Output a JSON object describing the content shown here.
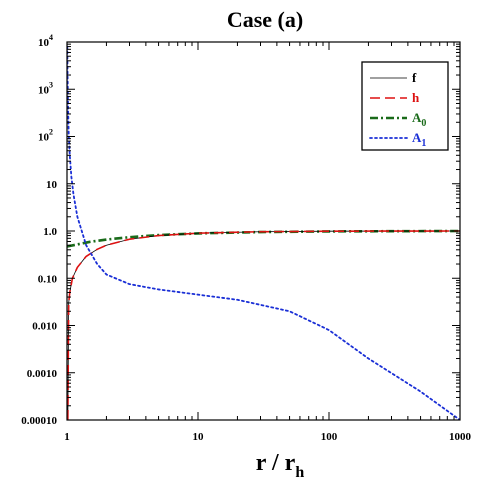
{
  "chart_data": {
    "type": "line",
    "title": "Case (a)",
    "xlabel": {
      "main": "r / r",
      "sub": "h"
    },
    "ylabel": "",
    "xscale": "log",
    "yscale": "log",
    "xlim": [
      1,
      1000
    ],
    "ylim": [
      0.0001,
      10000
    ],
    "x_ticks": [
      {
        "value": 1,
        "label": "1"
      },
      {
        "value": 10,
        "label": "10"
      },
      {
        "value": 100,
        "label": "100"
      },
      {
        "value": 1000,
        "label": "1000"
      }
    ],
    "y_ticks": [
      {
        "value": 0.0001,
        "label": "0.00010"
      },
      {
        "value": 0.001,
        "label": "0.0010"
      },
      {
        "value": 0.01,
        "label": "0.010"
      },
      {
        "value": 0.1,
        "label": "0.10"
      },
      {
        "value": 1,
        "label": "1.0"
      },
      {
        "value": 10,
        "label": "10"
      },
      {
        "value": 100,
        "label": "10",
        "sup": "2"
      },
      {
        "value": 1000,
        "label": "10",
        "sup": "3"
      },
      {
        "value": 10000,
        "label": "10",
        "sup": "4"
      }
    ],
    "grid": false,
    "legend_position": "top-right",
    "series": [
      {
        "name": "f",
        "sub": "",
        "color": "#000000",
        "style": "solid",
        "x": [
          1.015,
          1.03,
          1.05,
          1.1,
          1.2,
          1.4,
          1.7,
          2,
          3,
          5,
          10,
          30,
          100,
          300,
          1000
        ],
        "y": [
          0.0001,
          0.03,
          0.05,
          0.1,
          0.17,
          0.29,
          0.41,
          0.5,
          0.67,
          0.8,
          0.9,
          0.965,
          0.99,
          0.997,
          1.0
        ]
      },
      {
        "name": "h",
        "sub": "",
        "color": "#dd1111",
        "style": "dashed",
        "x": [
          1.015,
          1.03,
          1.05,
          1.1,
          1.2,
          1.4,
          1.7,
          2,
          3,
          5,
          10,
          30,
          100,
          300,
          1000
        ],
        "y": [
          0.0001,
          0.03,
          0.05,
          0.1,
          0.17,
          0.29,
          0.41,
          0.5,
          0.67,
          0.8,
          0.9,
          0.965,
          0.99,
          0.997,
          1.0
        ]
      },
      {
        "name": "A",
        "sub": "0",
        "color": "#1a6b1a",
        "style": "dashdot",
        "x": [
          1,
          1.2,
          1.5,
          2,
          3,
          5,
          10,
          30,
          100,
          300,
          1000
        ],
        "y": [
          0.47,
          0.52,
          0.59,
          0.66,
          0.74,
          0.82,
          0.89,
          0.95,
          0.98,
          0.99,
          1.0
        ]
      },
      {
        "name": "A",
        "sub": "1",
        "color": "#1a2fd6",
        "style": "dotted",
        "x": [
          1.005,
          1.01,
          1.02,
          1.03,
          1.05,
          1.08,
          1.12,
          1.2,
          1.4,
          1.7,
          2,
          3,
          5,
          10,
          20,
          50,
          100,
          200,
          500,
          1000
        ],
        "y": [
          8000,
          2000,
          350,
          120,
          40,
          14,
          6,
          2,
          0.5,
          0.2,
          0.12,
          0.075,
          0.058,
          0.045,
          0.035,
          0.02,
          0.008,
          0.002,
          0.0004,
          0.0001
        ]
      }
    ]
  }
}
